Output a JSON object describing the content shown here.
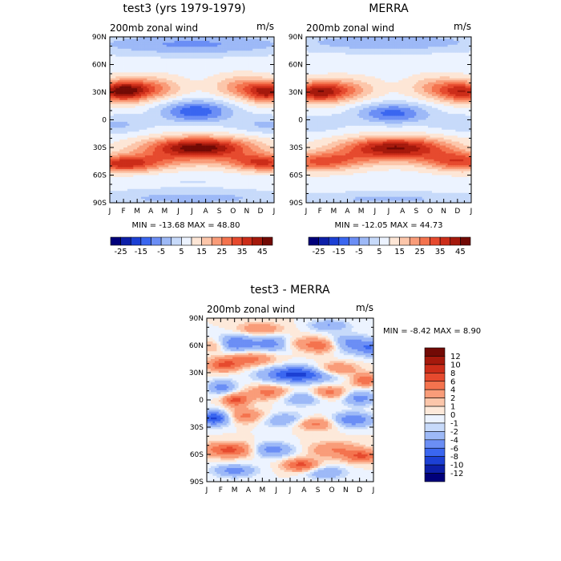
{
  "chart_data": [
    {
      "type": "heatmap",
      "title": "test3 (yrs 1979-1979)",
      "subtitle": "200mb zonal wind",
      "units": "m/s",
      "x_tick_labels": [
        "J",
        "F",
        "M",
        "A",
        "M",
        "J",
        "J",
        "A",
        "S",
        "O",
        "N",
        "D",
        "J"
      ],
      "y_tick_labels": [
        "90N",
        "60N",
        "30N",
        "0",
        "30S",
        "60S",
        "90S"
      ],
      "x_range": [
        0,
        12
      ],
      "y_range": [
        -90,
        90
      ],
      "min_max_text": "MIN = -13.68  MAX =  48.80",
      "contour_levels": [
        -30,
        -25,
        -20,
        -15,
        -10,
        -5,
        0,
        5,
        10,
        15,
        20,
        25,
        30,
        35,
        40,
        45
      ],
      "colorbar_labels": [
        "-25",
        "-15",
        "-5",
        "5",
        "15",
        "25",
        "35",
        "45"
      ],
      "colorbar_position": "bottom",
      "features": [
        {
          "month": 0.8,
          "lat": 32,
          "value": 44
        },
        {
          "month": 11.5,
          "lat": 30,
          "value": 38
        },
        {
          "month": 6.5,
          "lat": -30,
          "value": 48.8
        },
        {
          "month": 0.5,
          "lat": -48,
          "value": 35
        },
        {
          "month": 6,
          "lat": 10,
          "value": -13.68
        }
      ]
    },
    {
      "type": "heatmap",
      "title": "MERRA",
      "subtitle": "200mb zonal wind",
      "units": "m/s",
      "x_tick_labels": [
        "J",
        "F",
        "M",
        "A",
        "M",
        "J",
        "J",
        "A",
        "S",
        "O",
        "N",
        "D",
        "J"
      ],
      "y_tick_labels": [
        "90N",
        "60N",
        "30N",
        "0",
        "30S",
        "60S",
        "90S"
      ],
      "x_range": [
        0,
        12
      ],
      "y_range": [
        -90,
        90
      ],
      "min_max_text": "MIN = -12.05  MAX =  44.73",
      "contour_levels": [
        -30,
        -25,
        -20,
        -15,
        -10,
        -5,
        0,
        5,
        10,
        15,
        20,
        25,
        30,
        35,
        40,
        45
      ],
      "colorbar_labels": [
        "-25",
        "-15",
        "-5",
        "5",
        "15",
        "25",
        "35",
        "45"
      ],
      "colorbar_position": "bottom",
      "features": [
        {
          "month": 0.8,
          "lat": 30,
          "value": 40
        },
        {
          "month": 11.5,
          "lat": 30,
          "value": 36
        },
        {
          "month": 6.5,
          "lat": -30,
          "value": 44.73
        },
        {
          "month": 6,
          "lat": 8,
          "value": -12.05
        }
      ]
    },
    {
      "type": "heatmap",
      "title": "test3 - MERRA",
      "subtitle": "200mb zonal wind",
      "units": "m/s",
      "x_tick_labels": [
        "J",
        "F",
        "M",
        "A",
        "M",
        "J",
        "J",
        "A",
        "S",
        "O",
        "N",
        "D",
        "J"
      ],
      "y_tick_labels": [
        "90N",
        "60N",
        "30N",
        "0",
        "30S",
        "60S",
        "90S"
      ],
      "x_range": [
        0,
        12
      ],
      "y_range": [
        -90,
        90
      ],
      "min_max_text": "MIN =   -8.42 MAX =    8.90",
      "contour_levels": [
        -14,
        -12,
        -10,
        -8,
        -6,
        -4,
        -2,
        -1,
        0,
        1,
        2,
        4,
        6,
        8,
        10,
        12,
        14
      ],
      "colorbar_labels": [
        "12",
        "10",
        "8",
        "6",
        "4",
        "2",
        "1",
        "0",
        "-1",
        "-2",
        "-4",
        "-6",
        "-8",
        "-10",
        "-12"
      ],
      "colorbar_position": "right"
    }
  ],
  "colors": {
    "wind_scale": [
      "#00007a",
      "#0d1fa8",
      "#1c40d4",
      "#3a66f0",
      "#6b8ef5",
      "#9db9f7",
      "#c7dafa",
      "#ecf3ff",
      "#fde6d6",
      "#fcc6aa",
      "#f99c79",
      "#f4734e",
      "#e64a2e",
      "#cc2d19",
      "#a5190c",
      "#720a05"
    ],
    "diff_scale": [
      "#00007a",
      "#0d1fa8",
      "#1c40d4",
      "#3a66f0",
      "#6b8ef5",
      "#9db9f7",
      "#c7dafa",
      "#ecf3ff",
      "#fde9da",
      "#fcc6aa",
      "#f99c79",
      "#f4734e",
      "#e64a2e",
      "#cc2d19",
      "#a5190c",
      "#720a05"
    ]
  }
}
